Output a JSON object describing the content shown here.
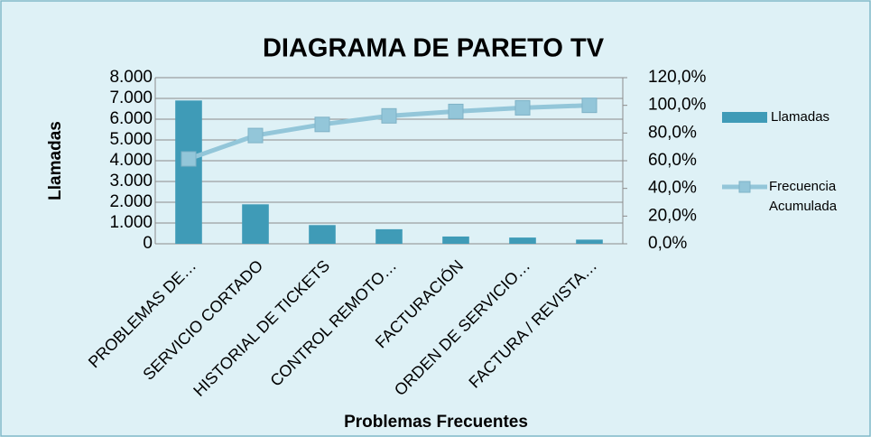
{
  "chart_data": {
    "type": "pareto",
    "title": "DIAGRAMA DE PARETO TV",
    "x_label": "Problemas Frecuentes",
    "y_label": "Llamadas",
    "categories": [
      "PROBLEMAS DE…",
      "SERVICIO CORTADO",
      "HISTORIAL DE TICKETS",
      "CONTROL REMOTO…",
      "FACTURACIÓN",
      "ORDEN DE SERVICIO…",
      "FACTURA / REVISTA…"
    ],
    "series": [
      {
        "name": "Llamadas",
        "color": "#3f9bb7",
        "values": [
          6900,
          1900,
          900,
          700,
          350,
          300,
          200
        ]
      },
      {
        "name": "Frecuencia Acumulada",
        "color": "#93c6d9",
        "axis": "y2",
        "values": [
          61.3,
          78.2,
          86.2,
          92.4,
          95.6,
          98.2,
          100
        ]
      }
    ],
    "ylim": [
      0,
      8000
    ],
    "yticks": [
      0,
      {
        "value": 1000,
        "label": "1.000"
      },
      {
        "value": 2000,
        "label": "2.000"
      },
      {
        "value": 3000,
        "label": "3.000"
      },
      {
        "value": 4000,
        "label": "4.000"
      },
      {
        "value": 5000,
        "label": "5.000"
      },
      {
        "value": 6000,
        "label": "6.000"
      },
      {
        "value": 7000,
        "label": "7.000"
      },
      {
        "value": 8000,
        "label": "8.000"
      }
    ],
    "y2lim": [
      0,
      120
    ],
    "y2ticks": [
      {
        "value": 0,
        "label": "0,0%"
      },
      {
        "value": 20,
        "label": "20,0%"
      },
      {
        "value": 40,
        "label": "40,0%"
      },
      {
        "value": 60,
        "label": "60,0%"
      },
      {
        "value": 80,
        "label": "80,0%"
      },
      {
        "value": 100,
        "label": "100,0%"
      },
      {
        "value": 120,
        "label": "120,0%"
      }
    ],
    "grid": true,
    "legend": "right"
  }
}
